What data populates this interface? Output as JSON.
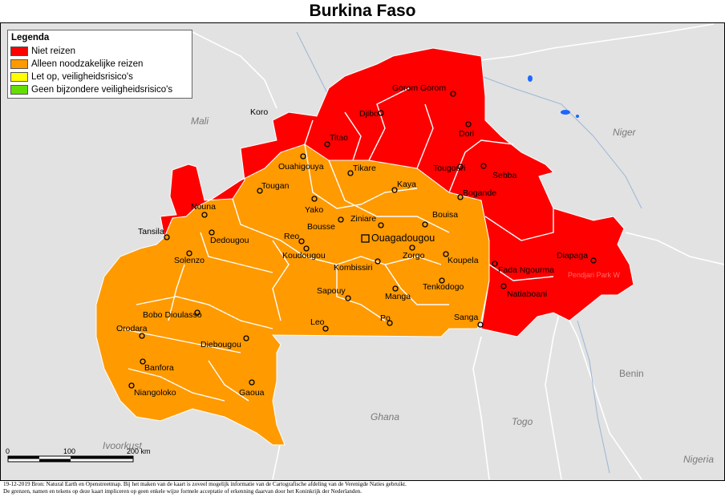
{
  "title": "Burkina Faso",
  "legend": {
    "title": "Legenda",
    "items": [
      {
        "label": "Niet reizen",
        "color": "#ff0000"
      },
      {
        "label": "Alleen noodzakelijke reizen",
        "color": "#ff9900"
      },
      {
        "label": "Let op, veiligheidsrisico's",
        "color": "#ffff00"
      },
      {
        "label": "Geen bijzondere veiligheidsrisico's",
        "color": "#66dd00"
      }
    ]
  },
  "countries": {
    "mali": "Mali",
    "niger_country": "Niger",
    "benin": "Benin",
    "togo": "Togo",
    "ghana": "Ghana",
    "ivoorkust": "Ivoorkust",
    "nigeria": "Nigeria"
  },
  "places": {
    "koro": "Koro",
    "niger_river": "Niger",
    "tansila": "Tansila",
    "gorom_gorom": "Gorom Gorom",
    "djibo": "Djibo",
    "dori": "Dori",
    "titao": "Titao",
    "ouahigouya": "Ouahigouya",
    "tikare": "Tikare",
    "tougouri": "Tougouri",
    "sebba": "Sebba",
    "tougan": "Tougan",
    "kaya": "Kaya",
    "bogande": "Bogande",
    "nouna": "Nouna",
    "yako": "Yako",
    "ziniare": "Ziniare",
    "bouisa": "Bouisa",
    "bousse": "Bousse",
    "dedougou": "Dedougou",
    "reo": "Reo",
    "ouagadougou": "Ouagadougou",
    "koudougou": "Koudougou",
    "zorgo": "Zorgo",
    "solenzo": "Solenzo",
    "koupela": "Koupela",
    "kombissiri": "Kombissiri",
    "fada_ngourma": "Fada Ngourma",
    "diapaga": "Diapaga",
    "tenkodogo": "Tenkodogo",
    "natiaboani": "Natiaboani",
    "sapouy": "Sapouy",
    "manga": "Manga",
    "bobo_dioulasso": "Bobo Dioulasso",
    "sanga": "Sanga",
    "orodara": "Orodara",
    "leo": "Leo",
    "po": "Po",
    "diebougou": "Diebougou",
    "banfora": "Banfora",
    "niangoloko": "Niangoloko",
    "gaoua": "Gaoua",
    "pendjari": "Pendjari Park W"
  },
  "scale": {
    "tick0": "0",
    "tick1": "100",
    "tick2": "200 km"
  },
  "footer": {
    "line1": "19-12-2019 Bron: Natural Earth en Openstreetmap. Bij het maken van de kaart is zoveel mogelijk informatie van de Cartografische afdeling van de Verenigde Naties gebruikt.",
    "line2": "De grenzen, namen en tekens op deze kaart impliceren op geen enkele wijze formele acceptatie of erkenning daarvan door het Koninkrijk der Nederlanden."
  }
}
